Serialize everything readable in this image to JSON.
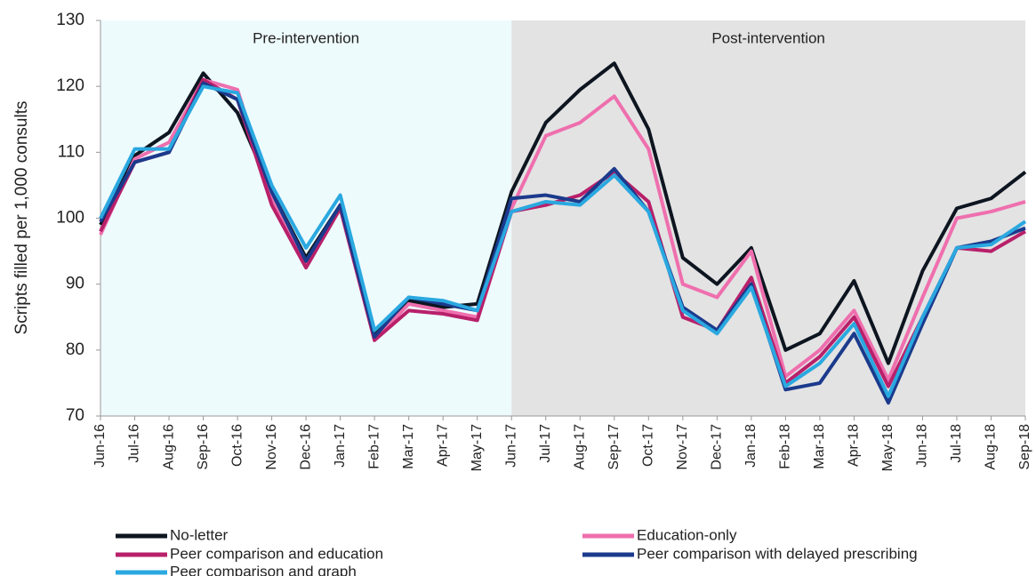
{
  "chart_data": {
    "type": "line",
    "y_label": "Scripts filled per 1,000 consults",
    "annotations": [
      "Pre-intervention",
      "Post-intervention"
    ],
    "categories": [
      "Jun-16",
      "Jul-16",
      "Aug-16",
      "Sep-16",
      "Oct-16",
      "Nov-16",
      "Dec-16",
      "Jan-17",
      "Feb-17",
      "Mar-17",
      "Apr-17",
      "May-17",
      "Jun-17",
      "Jul-17",
      "Aug-17",
      "Sep-17",
      "Oct-17",
      "Nov-17",
      "Dec-17",
      "Jan-18",
      "Feb-18",
      "Mar-18",
      "Apr-18",
      "May-18",
      "Jun-18",
      "Jul-18",
      "Aug-18",
      "Sep-18"
    ],
    "series": [
      {
        "name": "No-letter",
        "color": "#0d1520",
        "values": [
          99,
          109.5,
          113,
          122,
          116,
          104,
          94,
          102,
          82.5,
          87.5,
          86.5,
          87,
          104,
          114.5,
          119.5,
          123.5,
          113.5,
          94,
          90,
          95.5,
          80,
          82.5,
          90.5,
          78,
          92,
          101.5,
          103,
          107
        ]
      },
      {
        "name": "Education-only",
        "color": "#ef6fae",
        "values": [
          97.5,
          109,
          111.5,
          121,
          119.5,
          103,
          93,
          102,
          81.5,
          87,
          86,
          85,
          101.5,
          112.5,
          114.5,
          118.5,
          110.5,
          90,
          88,
          95,
          76,
          80,
          86,
          75.5,
          88,
          100,
          101,
          102.5
        ]
      },
      {
        "name": "Peer comparison and education",
        "color": "#b8206a",
        "values": [
          98,
          108.5,
          110,
          121,
          118,
          102,
          92.5,
          101.5,
          81.5,
          86,
          85.5,
          84.5,
          101,
          102,
          103.5,
          107,
          102.5,
          85,
          83,
          91,
          75,
          79,
          85,
          74.5,
          85,
          95.5,
          95,
          98
        ]
      },
      {
        "name": "Peer comparison with delayed prescribing",
        "color": "#1b3a8c",
        "values": [
          99.5,
          108.5,
          110,
          120.5,
          118,
          104,
          93.5,
          102,
          82,
          88,
          87,
          86,
          103,
          103.5,
          102.5,
          107.5,
          101,
          86.5,
          83,
          90,
          74,
          75,
          82.5,
          72,
          84,
          95.5,
          96.5,
          98.5
        ]
      },
      {
        "name": "Peer comparison and graph",
        "color": "#2aa8e0",
        "values": [
          100,
          110.5,
          110.5,
          120,
          119,
          105,
          95.5,
          103.5,
          83,
          88,
          87.5,
          86,
          101,
          102.5,
          102,
          106.5,
          101,
          86,
          82.5,
          89.5,
          74.5,
          78,
          84,
          73,
          85,
          95.5,
          96,
          99.5
        ]
      }
    ],
    "ylim": [
      70,
      130
    ],
    "yticks": [
      70,
      80,
      90,
      100,
      110,
      120,
      130
    ]
  }
}
